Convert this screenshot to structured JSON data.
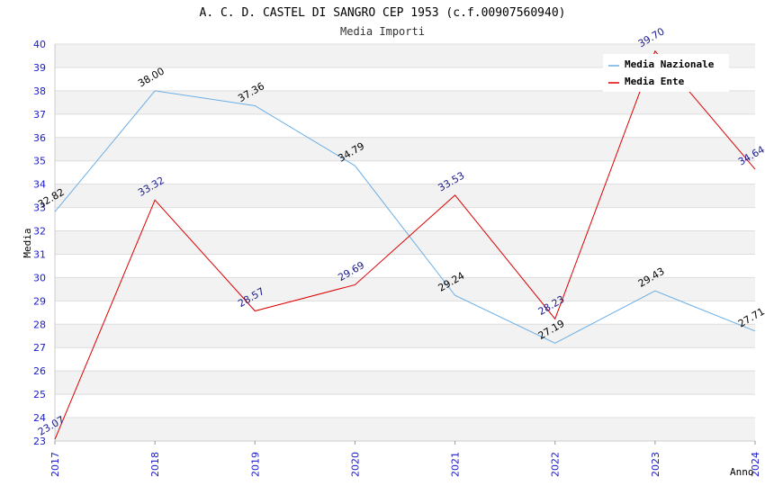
{
  "chart_data": {
    "type": "line",
    "title": "A. C. D. CASTEL DI SANGRO CEP 1953 (c.f.00907560940)",
    "subtitle": "Media Importi",
    "xlabel": "Anno",
    "ylabel": "Media",
    "ylim": [
      23,
      40
    ],
    "yticks": [
      "23",
      "24",
      "25",
      "26",
      "27",
      "28",
      "29",
      "30",
      "31",
      "32",
      "33",
      "34",
      "35",
      "36",
      "37",
      "38",
      "39",
      "40"
    ],
    "categories": [
      "2017",
      "2018",
      "2019",
      "2020",
      "2021",
      "2022",
      "2023",
      "2024"
    ],
    "series": [
      {
        "name": "Media Nazionale",
        "color": "#6aaee6",
        "values": [
          32.82,
          38.0,
          37.36,
          34.79,
          29.24,
          27.19,
          29.43,
          27.71
        ],
        "labels": [
          "32.82",
          "38.00",
          "37.36",
          "34.79",
          "29.24",
          "27.19",
          "29.43",
          "27.71"
        ]
      },
      {
        "name": "Media Ente",
        "color": "#dd0000",
        "values": [
          23.07,
          33.32,
          28.57,
          29.69,
          33.53,
          28.23,
          39.7,
          34.64
        ],
        "labels": [
          "23.07",
          "33.32",
          "28.57",
          "29.69",
          "33.53",
          "28.23",
          "39.70",
          "34.64"
        ]
      }
    ],
    "legend_position": "top-right",
    "grid": true
  }
}
